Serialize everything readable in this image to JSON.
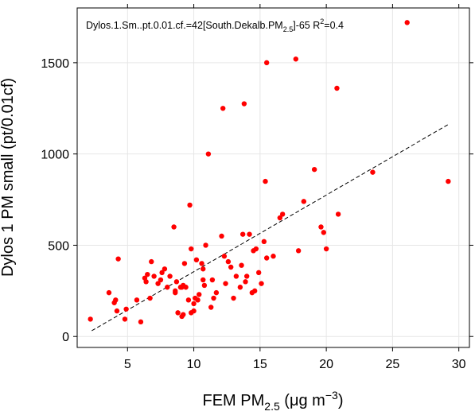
{
  "chart_data": {
    "type": "scatter",
    "title": "",
    "annotation": {
      "equation_prefix": "Dylos.1.Sm..pt.0.01.cf.=42[South.Dekalb.PM",
      "equation_sub": "2.5",
      "equation_suffix": "]-65 R",
      "r2_sup": "2",
      "r2_value": "=0.4"
    },
    "xlabel": {
      "main": "FEM PM",
      "sub": "2.5",
      "unit": " (μg m",
      "sup": "−3",
      "close": ")"
    },
    "ylabel": "Dylos 1 PM small (pt/0.01cf)",
    "xlim": [
      1.2,
      30.8
    ],
    "ylim": [
      -60,
      1800
    ],
    "xticks": [
      "5",
      "10",
      "15",
      "20",
      "25",
      "30"
    ],
    "yticks": [
      "0",
      "500",
      "1000",
      "1500"
    ],
    "grid": true,
    "point_color": "#ff0000",
    "fit_line": {
      "slope": 42,
      "intercept": -65,
      "x_range": [
        2.3,
        29.2
      ],
      "style": "dashed"
    },
    "points": [
      [
        2.2,
        95
      ],
      [
        3.6,
        240
      ],
      [
        4.0,
        185
      ],
      [
        4.1,
        200
      ],
      [
        4.2,
        140
      ],
      [
        4.3,
        425
      ],
      [
        4.8,
        95
      ],
      [
        4.9,
        150
      ],
      [
        5.7,
        200
      ],
      [
        6.0,
        80
      ],
      [
        6.3,
        320
      ],
      [
        6.4,
        300
      ],
      [
        6.5,
        340
      ],
      [
        6.7,
        210
      ],
      [
        6.8,
        410
      ],
      [
        7.0,
        330
      ],
      [
        7.3,
        290
      ],
      [
        7.5,
        310
      ],
      [
        7.6,
        350
      ],
      [
        7.8,
        370
      ],
      [
        8.0,
        270
      ],
      [
        8.2,
        330
      ],
      [
        8.5,
        600
      ],
      [
        8.6,
        240
      ],
      [
        8.6,
        250
      ],
      [
        8.7,
        300
      ],
      [
        8.8,
        130
      ],
      [
        9.0,
        270
      ],
      [
        9.1,
        270
      ],
      [
        9.1,
        110
      ],
      [
        9.2,
        120
      ],
      [
        9.2,
        280
      ],
      [
        9.3,
        400
      ],
      [
        9.4,
        270
      ],
      [
        9.6,
        200
      ],
      [
        9.7,
        720
      ],
      [
        9.8,
        480
      ],
      [
        9.8,
        130
      ],
      [
        10.0,
        180
      ],
      [
        10.0,
        140
      ],
      [
        10.1,
        210
      ],
      [
        10.2,
        420
      ],
      [
        10.3,
        200
      ],
      [
        10.4,
        230
      ],
      [
        10.6,
        400
      ],
      [
        10.7,
        310
      ],
      [
        10.7,
        370
      ],
      [
        10.8,
        280
      ],
      [
        10.9,
        500
      ],
      [
        11.1,
        1000
      ],
      [
        11.3,
        160
      ],
      [
        11.4,
        310
      ],
      [
        11.5,
        210
      ],
      [
        11.7,
        240
      ],
      [
        12.1,
        550
      ],
      [
        12.2,
        1250
      ],
      [
        12.3,
        440
      ],
      [
        12.4,
        290
      ],
      [
        12.6,
        410
      ],
      [
        12.8,
        380
      ],
      [
        13.0,
        210
      ],
      [
        13.2,
        330
      ],
      [
        13.5,
        270
      ],
      [
        13.6,
        390
      ],
      [
        13.7,
        560
      ],
      [
        13.8,
        1275
      ],
      [
        13.9,
        300
      ],
      [
        14.0,
        330
      ],
      [
        14.2,
        560
      ],
      [
        14.4,
        240
      ],
      [
        14.5,
        470
      ],
      [
        14.6,
        250
      ],
      [
        14.7,
        480
      ],
      [
        14.9,
        350
      ],
      [
        15.1,
        290
      ],
      [
        15.3,
        520
      ],
      [
        15.4,
        850
      ],
      [
        15.5,
        1500
      ],
      [
        15.5,
        430
      ],
      [
        16.0,
        440
      ],
      [
        16.5,
        650
      ],
      [
        16.7,
        670
      ],
      [
        17.7,
        1520
      ],
      [
        17.9,
        470
      ],
      [
        18.3,
        740
      ],
      [
        19.1,
        915
      ],
      [
        19.6,
        600
      ],
      [
        19.8,
        570
      ],
      [
        20.0,
        480
      ],
      [
        20.8,
        1360
      ],
      [
        20.9,
        670
      ],
      [
        23.5,
        900
      ],
      [
        26.1,
        1720
      ],
      [
        29.2,
        850
      ]
    ]
  }
}
